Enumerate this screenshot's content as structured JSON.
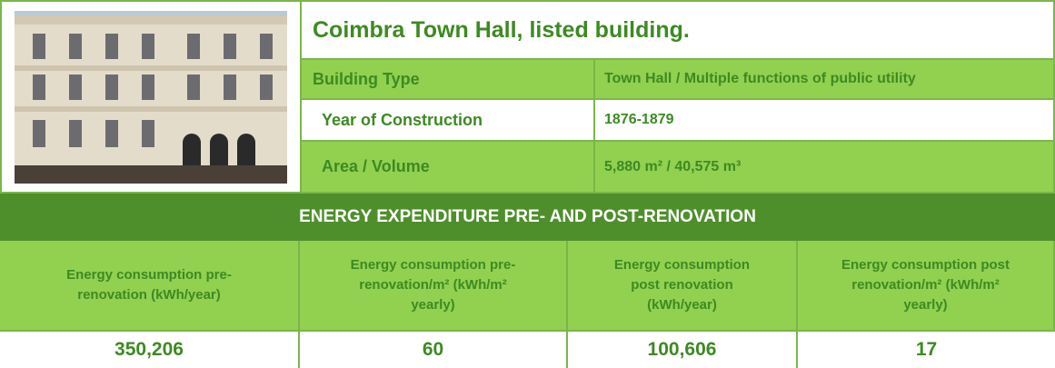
{
  "header": {
    "title": "Coimbra Town Hall, listed building."
  },
  "building_info": {
    "rows": [
      [
        "Building Type",
        "Town Hall / Multiple functions of public utility"
      ],
      [
        "Year of Construction",
        "1876-1879"
      ],
      [
        "Area / Volume",
        "5,880 m² / 40,575 m³"
      ]
    ]
  },
  "energy": {
    "title": "ENERGY EXPENDITURE PRE- AND POST-RENOVATION",
    "columns": [
      "Energy consumption pre-renovation (kWh/year)",
      "Energy consumption pre-renovation/m² (kWh/m² yearly)",
      "Energy consumption post renovation (kWh/year)",
      "Energy consumption post renovation/m² (kWh/m² yearly)"
    ],
    "values": [
      "350,206",
      "60",
      "100,606",
      "17"
    ]
  }
}
